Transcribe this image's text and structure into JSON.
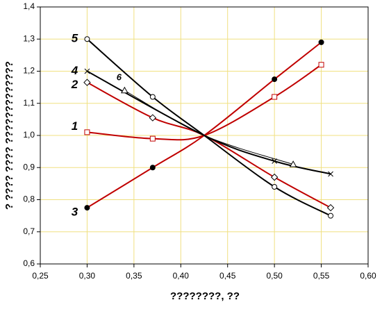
{
  "chart_data": {
    "type": "line",
    "xlabel": "????????, ??",
    "ylabel": "? ???? ???? ?????????????",
    "xlim": [
      0.25,
      0.6
    ],
    "ylim": [
      0.6,
      1.4
    ],
    "xticks": [
      {
        "value": 0.25,
        "label": "0,25"
      },
      {
        "value": 0.3,
        "label": "0,30"
      },
      {
        "value": 0.35,
        "label": "0,35"
      },
      {
        "value": 0.4,
        "label": "0,40"
      },
      {
        "value": 0.45,
        "label": "0,45"
      },
      {
        "value": 0.5,
        "label": "0,50"
      },
      {
        "value": 0.55,
        "label": "0,55"
      },
      {
        "value": 0.6,
        "label": "0,60"
      }
    ],
    "yticks": [
      {
        "value": 0.6,
        "label": "0,6"
      },
      {
        "value": 0.7,
        "label": "0,7"
      },
      {
        "value": 0.8,
        "label": "0,8"
      },
      {
        "value": 0.9,
        "label": "0,9"
      },
      {
        "value": 1.0,
        "label": "1,0"
      },
      {
        "value": 1.1,
        "label": "1,1"
      },
      {
        "value": 1.2,
        "label": "1,2"
      },
      {
        "value": 1.3,
        "label": "1,3"
      },
      {
        "value": 1.4,
        "label": "1,4"
      }
    ],
    "grid": true,
    "series": [
      {
        "name": "1",
        "color": "#c00000",
        "marker": "square",
        "x": [
          0.3,
          0.37,
          0.425,
          0.5,
          0.55
        ],
        "values": [
          1.01,
          0.99,
          1.0,
          1.12,
          1.22
        ]
      },
      {
        "name": "2",
        "color": "#c00000",
        "marker": "diamond",
        "x": [
          0.3,
          0.37,
          0.425,
          0.5,
          0.56
        ],
        "values": [
          1.165,
          1.055,
          1.0,
          0.87,
          0.775
        ]
      },
      {
        "name": "3",
        "color": "#c00000",
        "marker": "dot",
        "x": [
          0.3,
          0.37,
          0.425,
          0.5,
          0.55
        ],
        "values": [
          0.775,
          0.9,
          1.0,
          1.175,
          1.29
        ]
      },
      {
        "name": "4",
        "color": "#000000",
        "marker": "cross",
        "x": [
          0.3,
          0.425,
          0.5,
          0.56
        ],
        "values": [
          1.2,
          1.0,
          0.92,
          0.88
        ]
      },
      {
        "name": "5",
        "color": "#000000",
        "marker": "circle",
        "x": [
          0.3,
          0.37,
          0.425,
          0.5,
          0.56
        ],
        "values": [
          1.3,
          1.12,
          1.0,
          0.84,
          0.75
        ]
      },
      {
        "name": "6",
        "color": "#000000",
        "marker": "triangle",
        "x": [
          0.34,
          0.425,
          0.52
        ],
        "values": [
          1.14,
          1.0,
          0.91
        ]
      }
    ]
  }
}
